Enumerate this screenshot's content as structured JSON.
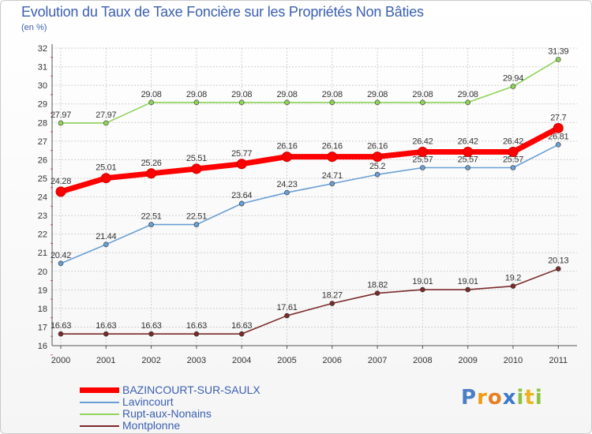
{
  "title": "Evolution du Taux de Taxe Foncière sur les Propriétés Non Bâties",
  "unit": "(en %)",
  "chart_data": {
    "type": "line",
    "title": "Evolution du Taux de Taxe Foncière sur les Propriétés Non Bâties",
    "ylabel": "(en %)",
    "xlabel": "",
    "ylim": [
      16,
      32
    ],
    "yticks": [
      "16",
      "17",
      "18",
      "19",
      "20",
      "21",
      "22",
      "23",
      "24",
      "25",
      "26",
      "27",
      "28",
      "29",
      "30",
      "31",
      "32"
    ],
    "x": [
      "2000",
      "2001",
      "2002",
      "2003",
      "2004",
      "2005",
      "2006",
      "2007",
      "2008",
      "2009",
      "2010",
      "2011"
    ],
    "series": [
      {
        "name": "BAZINCOURT-SUR-SAULX",
        "color": "#ff0000",
        "highlight": true,
        "values": [
          24.28,
          25.01,
          25.26,
          25.51,
          25.77,
          26.16,
          26.16,
          26.16,
          26.42,
          26.42,
          26.42,
          27.7
        ],
        "labels": [
          "24.28",
          "25.01",
          "25.26",
          "25.51",
          "25.77",
          "26.16",
          "26.16",
          "26.16",
          "26.42",
          "26.42",
          "26.42",
          "27.7"
        ]
      },
      {
        "name": "Lavincourt",
        "color": "#6a9fd4",
        "highlight": false,
        "values": [
          20.42,
          21.44,
          22.51,
          22.51,
          23.64,
          24.23,
          24.71,
          25.2,
          25.57,
          25.57,
          25.57,
          26.81
        ],
        "labels": [
          "20.42",
          "21.44",
          "22.51",
          "22.51",
          "23.64",
          "24.23",
          "24.71",
          "25.2",
          "25.57",
          "25.57",
          "25.57",
          "26.81"
        ]
      },
      {
        "name": "Rupt-aux-Nonains",
        "color": "#8fd45a",
        "highlight": false,
        "values": [
          27.97,
          27.97,
          29.08,
          29.08,
          29.08,
          29.08,
          29.08,
          29.08,
          29.08,
          29.08,
          29.94,
          31.39
        ],
        "labels": [
          "27.97",
          "27.97",
          "29.08",
          "29.08",
          "29.08",
          "29.08",
          "29.08",
          "29.08",
          "29.08",
          "29.08",
          "29.94",
          "31.39"
        ]
      },
      {
        "name": "Montplonne",
        "color": "#7a2a2a",
        "highlight": false,
        "values": [
          16.63,
          16.63,
          16.63,
          16.63,
          16.63,
          17.61,
          18.27,
          18.82,
          19.01,
          19.01,
          19.2,
          20.13
        ],
        "labels": [
          "16.63",
          "16.63",
          "16.63",
          "16.63",
          "16.63",
          "17.61",
          "18.27",
          "18.82",
          "19.01",
          "19.01",
          "19.2",
          "20.13"
        ]
      }
    ]
  },
  "legend": [
    "BAZINCOURT-SUR-SAULX",
    "Lavincourt",
    "Rupt-aux-Nonains",
    "Montplonne"
  ],
  "legend_colors": [
    "#ff0000",
    "#6a9fd4",
    "#8fd45a",
    "#7a2a2a"
  ],
  "logo": {
    "p": "P",
    "r": "r",
    "o": "o",
    "x": "x",
    "i": "i",
    "t": "t",
    "i2": "i"
  }
}
